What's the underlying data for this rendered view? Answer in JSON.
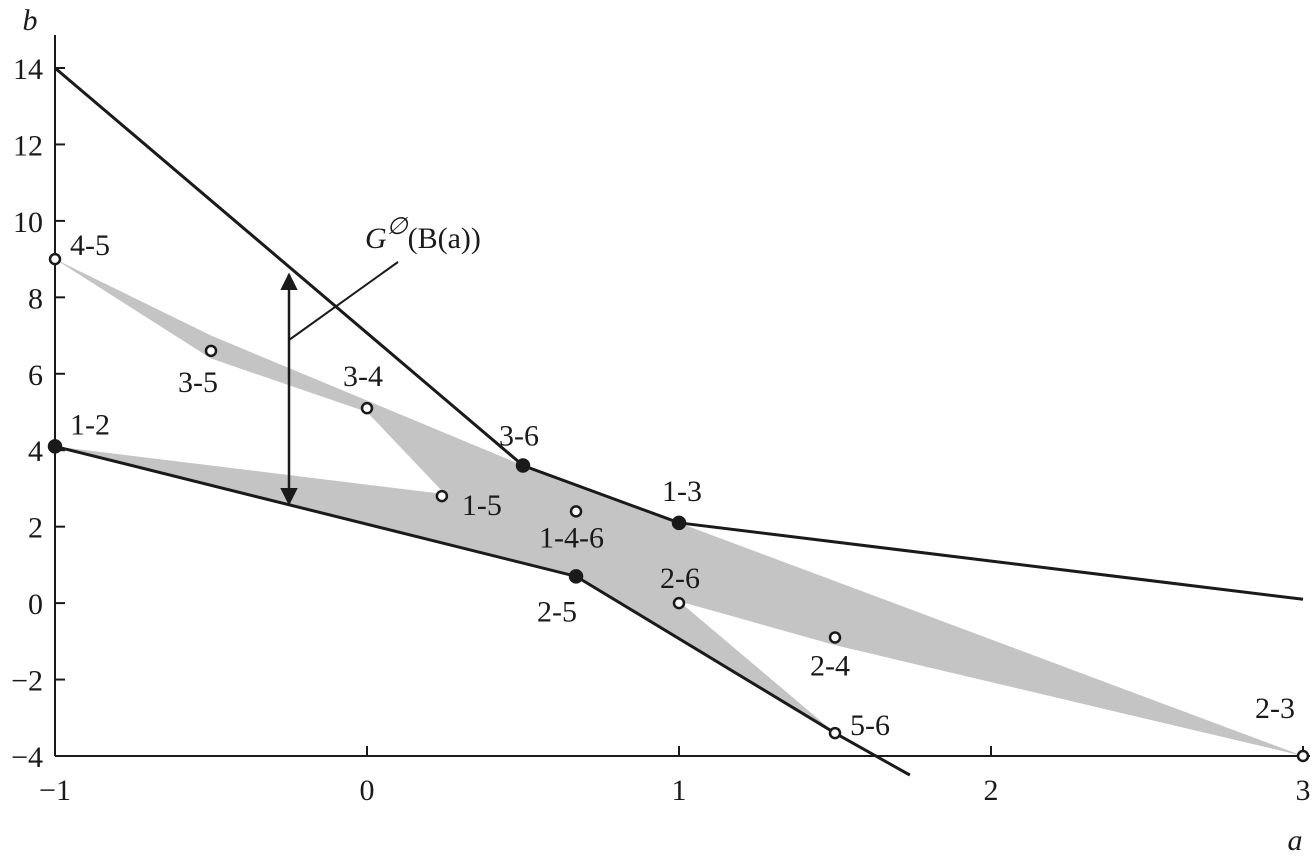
{
  "chart_data": {
    "type": "scatter",
    "xlabel": "a",
    "ylabel": "b",
    "xlim": [
      -1,
      3
    ],
    "ylim": [
      -4,
      14
    ],
    "xticks": [
      {
        "value": -1,
        "label": "−1"
      },
      0,
      1,
      2,
      3
    ],
    "yticks": [
      {
        "value": -4,
        "label": "−4"
      },
      {
        "value": -2,
        "label": "−2"
      },
      0,
      2,
      4,
      6,
      8,
      10,
      12,
      14
    ],
    "region": {
      "color": "#c4c4c4",
      "x": [
        -1,
        -0.5,
        0.5,
        1,
        3,
        1.5,
        1,
        1.5,
        0.67,
        -1,
        0.25,
        0,
        -0.5
      ],
      "y": [
        9,
        7.0,
        3.6,
        2.1,
        -4,
        -1.1,
        0.05,
        -3.4,
        0.7,
        4.1,
        2.85,
        5.0,
        6.4
      ]
    },
    "lines": [
      {
        "color": "#1a1a1a",
        "x": [
          -1,
          0.5,
          1,
          3
        ],
        "y": [
          14,
          3.6,
          2.1,
          0.1
        ]
      },
      {
        "color": "#1a1a1a",
        "x": [
          -1,
          0.67,
          1.5,
          1.74
        ],
        "y": [
          4.1,
          0.7,
          -3.4,
          -4.5
        ]
      }
    ],
    "points": [
      {
        "label": "4-5",
        "x": -1,
        "y": 9,
        "filled": false
      },
      {
        "label": "3-5",
        "x": -0.5,
        "y": 6.6,
        "filled": false
      },
      {
        "label": "3-4",
        "x": 0,
        "y": 5.1,
        "filled": false
      },
      {
        "label": "1-2",
        "x": -1,
        "y": 4.1,
        "filled": true
      },
      {
        "label": "3-6",
        "x": 0.5,
        "y": 3.6,
        "filled": true
      },
      {
        "label": "1-5",
        "x": 0.24,
        "y": 2.8,
        "filled": false
      },
      {
        "label": "1-4-6",
        "x": 0.67,
        "y": 2.4,
        "filled": false
      },
      {
        "label": "1-3",
        "x": 1,
        "y": 2.1,
        "filled": true
      },
      {
        "label": "2-5",
        "x": 0.67,
        "y": 0.7,
        "filled": true
      },
      {
        "label": "2-6",
        "x": 1,
        "y": 0,
        "filled": false
      },
      {
        "label": "2-4",
        "x": 1.5,
        "y": -0.9,
        "filled": false
      },
      {
        "label": "5-6",
        "x": 1.5,
        "y": -3.4,
        "filled": false
      },
      {
        "label": "2-3",
        "x": 3,
        "y": -4,
        "filled": false
      }
    ],
    "arrow": {
      "x": -0.25,
      "y": [
        2.6,
        8.6
      ]
    },
    "annotation": {
      "base": "G",
      "superscript": "∅",
      "argument": "(B(a))"
    }
  }
}
